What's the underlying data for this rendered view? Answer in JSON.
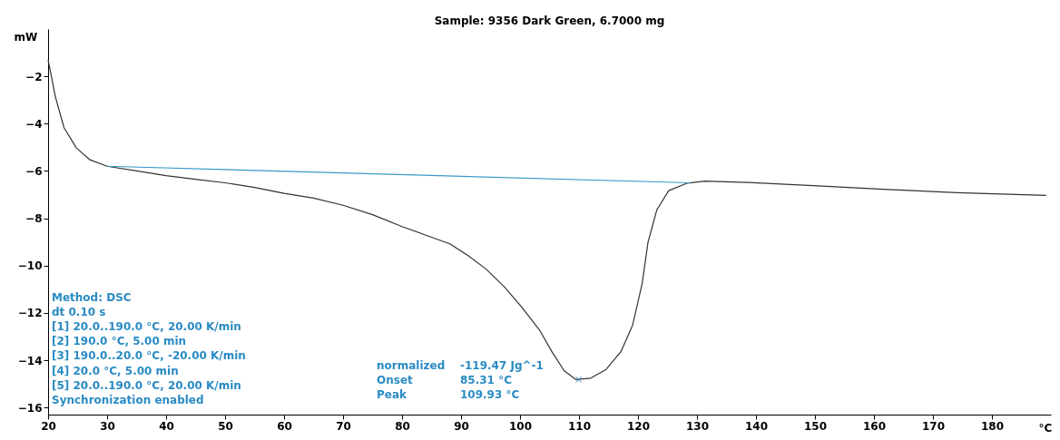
{
  "chart_data": {
    "type": "line",
    "title": "Sample: 9356 Dark Green, 6.7000 mg",
    "xlabel": "°C",
    "ylabel": "mW",
    "xlim": [
      20,
      190
    ],
    "ylim": [
      -16.3,
      0
    ],
    "xticks": [
      20,
      30,
      40,
      50,
      60,
      70,
      80,
      90,
      100,
      110,
      120,
      130,
      140,
      150,
      160,
      170,
      180
    ],
    "yticks": [
      -16,
      -14,
      -12,
      -10,
      -8,
      -6,
      -4,
      -2
    ],
    "grid": false,
    "series": [
      {
        "color": "#333333",
        "x": [
          20,
          21.25,
          22.7,
          24.8,
          27.1,
          30,
          35,
          40,
          45,
          50,
          55,
          60,
          65,
          70,
          75,
          80,
          85,
          88.1,
          91.2,
          94.2,
          97.3,
          100.3,
          103.4,
          105.4,
          107.5,
          109.5,
          112,
          114.6,
          117.1,
          119.1,
          120.7,
          121.7,
          123.2,
          125.2,
          128.3,
          131.3,
          138.7,
          150.5,
          162.3,
          174.1,
          189.2
        ],
        "values": [
          -1.3,
          -2.88,
          -4.17,
          -5.03,
          -5.53,
          -5.8,
          -6.0,
          -6.2,
          -6.35,
          -6.5,
          -6.7,
          -6.95,
          -7.15,
          -7.45,
          -7.85,
          -8.35,
          -8.8,
          -9.08,
          -9.58,
          -10.14,
          -10.89,
          -11.76,
          -12.76,
          -13.64,
          -14.45,
          -14.82,
          -14.76,
          -14.39,
          -13.64,
          -12.51,
          -10.76,
          -9.01,
          -7.64,
          -6.83,
          -6.52,
          -6.43,
          -6.49,
          -6.63,
          -6.78,
          -6.92,
          -7.03
        ]
      },
      {
        "color": "#3a9ac9",
        "x": [
          30,
          128.8
        ],
        "values": [
          -5.8,
          -6.5
        ]
      },
      {
        "type": "scatter",
        "marker": "cross",
        "color": "#3a8fc0",
        "x": [
          109.93
        ],
        "values": [
          -14.82
        ]
      }
    ],
    "annotations": [
      "Method: DSC",
      "dt 0.10 s",
      "[1] 20.0..190.0 °C, 20.00 K/min",
      "[2] 190.0 °C, 5.00 min",
      "[3] 190.0..20.0 °C, -20.00 K/min",
      "[4] 20.0 °C, 5.00 min",
      "[5] 20.0..190.0 °C, 20.00 K/min",
      "Synchronization enabled",
      "normalized -119.47 Jg^-1",
      "Onset 85.31 °C",
      "Peak 109.93 °C"
    ]
  }
}
